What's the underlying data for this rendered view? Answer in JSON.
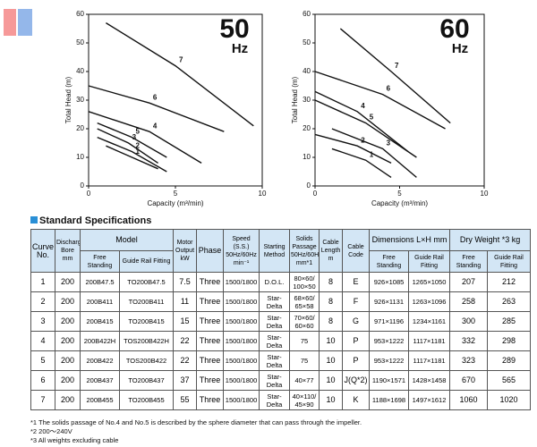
{
  "chart_data": [
    {
      "type": "line",
      "title": "50",
      "subtitle": "Hz",
      "x_label": "Capacity (m³/min)",
      "y_label": "Total Head (m)",
      "xlim": [
        0,
        10
      ],
      "ylim": [
        0,
        60
      ],
      "xticks": [
        0,
        5,
        10
      ],
      "yticks": [
        0,
        10,
        20,
        30,
        40,
        50,
        60
      ],
      "grid": false,
      "series": [
        {
          "name": "1",
          "color": "#111111",
          "x": [
            1,
            2.5,
            4
          ],
          "values": [
            14,
            10,
            6
          ]
        },
        {
          "name": "2",
          "color": "#111111",
          "x": [
            0.5,
            2.5,
            4.5
          ],
          "values": [
            17,
            12,
            5
          ]
        },
        {
          "name": "3",
          "color": "#111111",
          "x": [
            0.5,
            2.3,
            4
          ],
          "values": [
            20,
            15,
            8
          ]
        },
        {
          "name": "4",
          "color": "#111111",
          "x": [
            0,
            3.5,
            6.5
          ],
          "values": [
            26,
            19,
            8
          ]
        },
        {
          "name": "5",
          "color": "#111111",
          "x": [
            0.5,
            2.5,
            4.5
          ],
          "values": [
            22,
            17,
            10
          ]
        },
        {
          "name": "6",
          "color": "#111111",
          "x": [
            0,
            3.5,
            7.8
          ],
          "values": [
            35,
            29,
            19
          ]
        },
        {
          "name": "7",
          "color": "#111111",
          "x": [
            1,
            5,
            9.5
          ],
          "values": [
            57,
            42,
            21
          ]
        }
      ]
    },
    {
      "type": "line",
      "title": "60",
      "subtitle": "Hz",
      "x_label": "Capacity (m³/min)",
      "y_label": "Total Head (m)",
      "xlim": [
        0,
        10
      ],
      "ylim": [
        0,
        60
      ],
      "xticks": [
        0,
        5,
        10
      ],
      "yticks": [
        0,
        10,
        20,
        30,
        40,
        50,
        60
      ],
      "grid": false,
      "series": [
        {
          "name": "1",
          "color": "#111111",
          "x": [
            1,
            3,
            4.5
          ],
          "values": [
            13,
            9,
            3
          ]
        },
        {
          "name": "2",
          "color": "#111111",
          "x": [
            0,
            2.5,
            4.5
          ],
          "values": [
            18,
            14,
            8
          ]
        },
        {
          "name": "3",
          "color": "#111111",
          "x": [
            1,
            4,
            6
          ],
          "values": [
            20,
            13,
            3
          ]
        },
        {
          "name": "4",
          "color": "#111111",
          "x": [
            0,
            2.5,
            5.5
          ],
          "values": [
            33,
            26,
            12
          ]
        },
        {
          "name": "5",
          "color": "#111111",
          "x": [
            0,
            3,
            6
          ],
          "values": [
            30,
            22,
            10
          ]
        },
        {
          "name": "6",
          "color": "#111111",
          "x": [
            0,
            4,
            7.7
          ],
          "values": [
            40,
            32,
            20
          ]
        },
        {
          "name": "7",
          "color": "#111111",
          "x": [
            1.5,
            4.5,
            8
          ],
          "values": [
            55,
            40,
            22
          ]
        }
      ]
    }
  ],
  "table": {
    "title": "Standard Specifications",
    "header": {
      "curve_no": "Curve No.",
      "bore": "Discharge Bore mm",
      "model": "Model",
      "model_free": "Free Standing",
      "model_guide": "Guide Rail Fitting",
      "motor": "Motor Output kW",
      "phase": "Phase",
      "speed": "Speed (S.S.) 50Hz/60Hz min⁻¹",
      "starting": "Starting Method",
      "solids": "Solids Passage 50Hz/60Hz mm*1",
      "cable_length": "Cable Length m",
      "cable_code": "Cable Code",
      "dimensions": "Dimensions L×H mm",
      "dim_free": "Free Standing",
      "dim_guide": "Guide Rail Fitting",
      "weight": "Dry Weight *3 kg",
      "w_free": "Free Standing",
      "w_guide": "Guide Rail Fitting"
    },
    "rows": [
      [
        "1",
        "200",
        "200B47.5",
        "TO200B47.5",
        "7.5",
        "Three",
        "1500/1800",
        "D.O.L.",
        "80×60/ 100×50",
        "8",
        "E",
        "926×1085",
        "1265×1050",
        "207",
        "212"
      ],
      [
        "2",
        "200",
        "200B411",
        "TO200B411",
        "11",
        "Three",
        "1500/1800",
        "Star-Delta",
        "68×60/ 65×58",
        "8",
        "F",
        "926×1131",
        "1263×1096",
        "258",
        "263"
      ],
      [
        "3",
        "200",
        "200B415",
        "TO200B415",
        "15",
        "Three",
        "1500/1800",
        "Star-Delta",
        "70×60/ 60×60",
        "8",
        "G",
        "971×1196",
        "1234×1161",
        "300",
        "285"
      ],
      [
        "4",
        "200",
        "200B422H",
        "TOS200B422H",
        "22",
        "Three",
        "1500/1800",
        "Star-Delta",
        "75",
        "10",
        "P",
        "953×1222",
        "1117×1181",
        "332",
        "298"
      ],
      [
        "5",
        "200",
        "200B422",
        "TOS200B422",
        "22",
        "Three",
        "1500/1800",
        "Star-Delta",
        "75",
        "10",
        "P",
        "953×1222",
        "1117×1181",
        "323",
        "289"
      ],
      [
        "6",
        "200",
        "200B437",
        "TO200B437",
        "37",
        "Three",
        "1500/1800",
        "Star-Delta",
        "40×77",
        "10",
        "J(Q*2)",
        "1190×1571",
        "1428×1458",
        "670",
        "565"
      ],
      [
        "7",
        "200",
        "200B455",
        "TO200B455",
        "55",
        "Three",
        "1500/1800",
        "Star-Delta",
        "40×110/ 45×90",
        "10",
        "K",
        "1188×1698",
        "1497×1612",
        "1060",
        "1020"
      ]
    ]
  },
  "footnotes": [
    "*1 The solids passage of No.4 and No.5 is described by the sphere diameter that can pass through the impeller.",
    "*2 200～240V",
    "*3 All weights excluding cable"
  ]
}
